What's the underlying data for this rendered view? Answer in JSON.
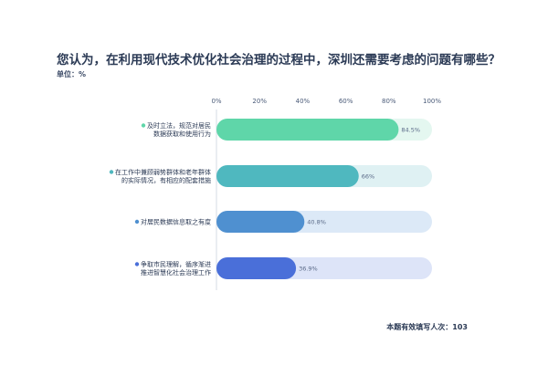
{
  "chart_data": {
    "type": "bar",
    "orientation": "horizontal",
    "title": "您认为，在利用现代技术优化社会治理的过程中，深圳还需要考虑的问题有哪些？",
    "unit_label": "单位：%",
    "footer": "本题有效填写人次：103",
    "xlim": [
      0,
      100
    ],
    "x_ticks": [
      "0%",
      "20%",
      "40%",
      "60%",
      "80%",
      "100%"
    ],
    "categories": [
      [
        "及时立法，规范对居民",
        "数据获取和使用行为"
      ],
      [
        "在工作中兼顾弱势群体和老年群体",
        "的实际情况，有相应的配套措施"
      ],
      [
        "对居民数据信息取之有度"
      ],
      [
        "争取市民理解，循序渐进",
        "推进智慧化社会治理工作"
      ]
    ],
    "values": [
      84.5,
      66,
      40.8,
      36.9
    ],
    "value_labels": [
      "84.5%",
      "66%",
      "40.8%",
      "36.9%"
    ],
    "bar_colors": [
      "#5fd6a9",
      "#4fb8bf",
      "#4f90d0",
      "#4a6fd9"
    ],
    "track_colors": [
      "#e4f7f0",
      "#dff1f3",
      "#dce9f7",
      "#dde4f8"
    ]
  }
}
